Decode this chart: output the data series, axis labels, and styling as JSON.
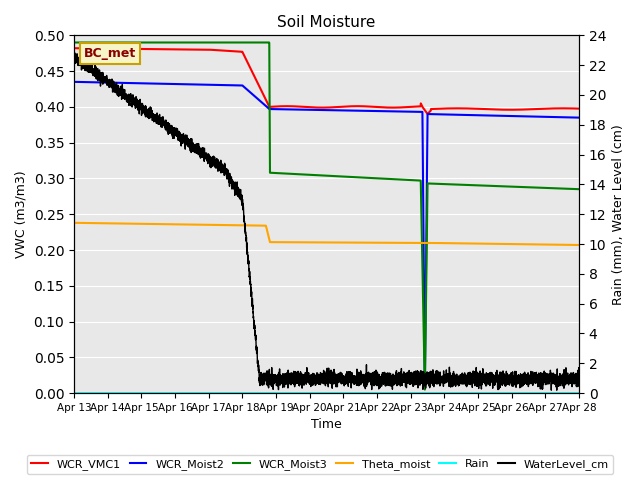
{
  "title": "Soil Moisture",
  "ylabel_left": "VWC (m3/m3)",
  "ylabel_right": "Rain (mm), Water Level (cm)",
  "xlabel": "Time",
  "ylim_left": [
    0.0,
    0.5
  ],
  "ylim_right": [
    0,
    24
  ],
  "background_color": "#e8e8e8",
  "annotation_text": "BC_met",
  "annotation_box_color": "#f5f5c8",
  "annotation_box_edge": "#c8a000",
  "x_tick_labels": [
    "Apr 13",
    "Apr 14",
    "Apr 15",
    "Apr 16",
    "Apr 17",
    "Apr 18",
    "Apr 19",
    "Apr 20",
    "Apr 21",
    "Apr 22",
    "Apr 23",
    "Apr 24",
    "Apr 25",
    "Apr 26",
    "Apr 27",
    "Apr 28"
  ],
  "x_tick_positions": [
    0,
    1,
    2,
    3,
    4,
    5,
    6,
    7,
    8,
    9,
    10,
    11,
    12,
    13,
    14,
    15
  ],
  "yticks_left": [
    0.0,
    0.05,
    0.1,
    0.15,
    0.2,
    0.25,
    0.3,
    0.35,
    0.4,
    0.45,
    0.5
  ],
  "yticks_right": [
    0,
    2,
    4,
    6,
    8,
    10,
    12,
    14,
    16,
    18,
    20,
    22,
    24
  ]
}
